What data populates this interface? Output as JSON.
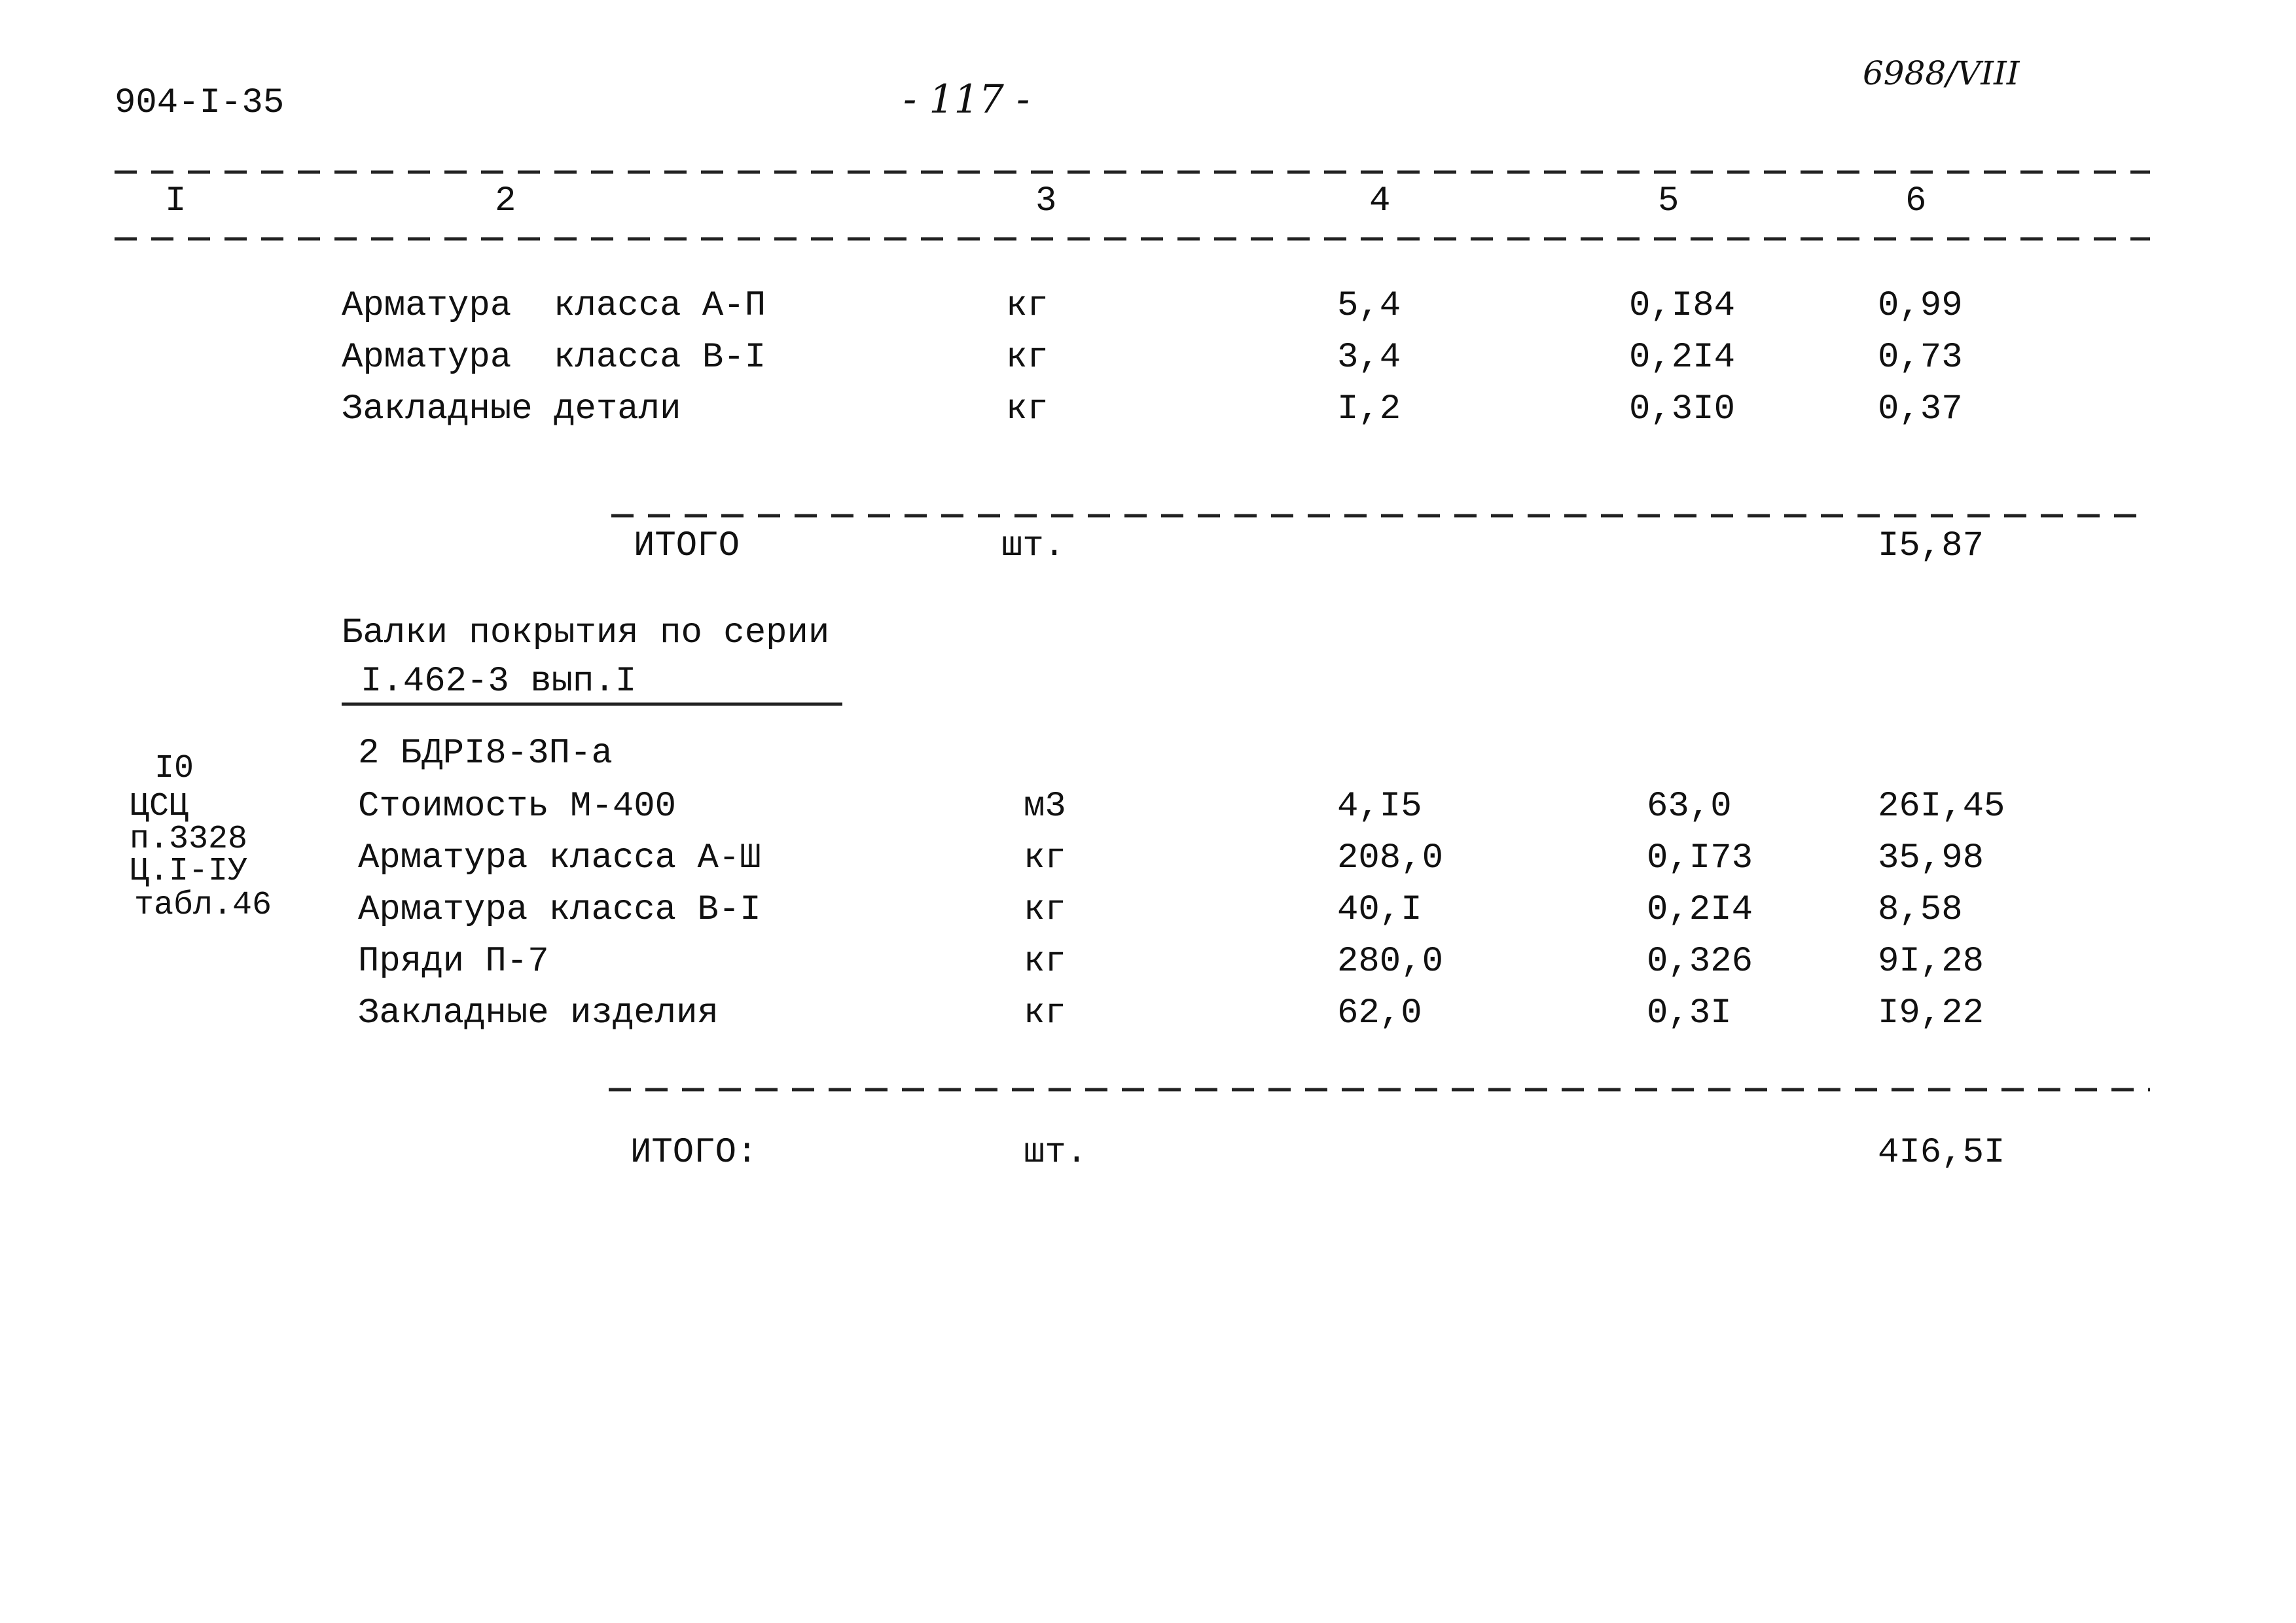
{
  "header": {
    "code": "904-I-35",
    "page": "- 117 -",
    "sheet": "6988/VIII"
  },
  "table": {
    "columns": [
      "I",
      "2",
      "3",
      "4",
      "5",
      "6"
    ],
    "sections": [
      {
        "rows": [
          [
            "Арматура  класса А-П",
            "кг",
            "5,4",
            "0,I84",
            "0,99"
          ],
          [
            "Арматура  класса В-I",
            "кг",
            "3,4",
            "0,2I4",
            "0,73"
          ],
          [
            "Закладные детали",
            "кг",
            "I,2",
            "0,3I0",
            "0,37"
          ]
        ],
        "total": {
          "label": "ИТОГО",
          "unit": "шт.",
          "value": "I5,87"
        }
      },
      {
        "title": [
          "Балки покрытия по серии",
          "I.462-3 вып.I"
        ],
        "reference": [
          "I0",
          "ЦСЦ",
          "п.3328",
          "Ц.I-IУ",
          "табл.46"
        ],
        "item": "2 БДРI8-3П-а",
        "rows": [
          [
            "Стоимость М-400",
            "м3",
            "4,I5",
            "63,0",
            "26I,45"
          ],
          [
            "Арматура класса А-Ш",
            "кг",
            "208,0",
            "0,I73",
            "35,98"
          ],
          [
            "Арматура класса В-I",
            "кг",
            "40,I",
            "0,2I4",
            "8,58"
          ],
          [
            "Пряди П-7",
            "кг",
            "280,0",
            "0,326",
            "9I,28"
          ],
          [
            "Закладные изделия",
            "кг",
            "62,0",
            "0,3I",
            "I9,22"
          ]
        ],
        "total": {
          "label": "ИТОГО:",
          "unit": "шт.",
          "value": "4I6,5I"
        }
      }
    ]
  }
}
